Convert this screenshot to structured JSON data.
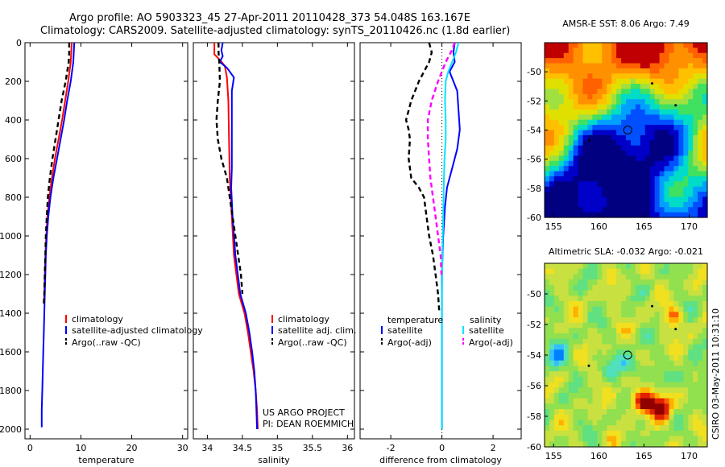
{
  "header": {
    "line1": "Argo profile: AO 5903323_45 27-Apr-2011 20110428_373 54.048S 163.167E",
    "line2": "Climatology: CARS2009. Satellite-adjusted climatology: synTS_20110426.nc (1.8d earlier)"
  },
  "colors": {
    "climatology": "#ff0000",
    "satellite": "#0000ff",
    "argo": "#000000",
    "cyan": "#00e5ff",
    "magenta": "#ff00ff"
  },
  "chart_data": [
    {
      "type": "line",
      "xlabel": "temperature",
      "ylabel": "",
      "xlim": [
        -1,
        31
      ],
      "ylim": [
        2050,
        0
      ],
      "xticks": [
        "0",
        "10",
        "20",
        "30"
      ],
      "yticks": [
        "0",
        "200",
        "400",
        "600",
        "800",
        "1000",
        "1200",
        "1400",
        "1600",
        "1800",
        "2000"
      ],
      "legend": [
        "climatology",
        "satellite-adjusted climatology",
        "Argo(..raw -QC)"
      ],
      "series": [
        {
          "name": "climatology",
          "style": "solid",
          "points": [
            [
              8.2,
              0
            ],
            [
              8.1,
              50
            ],
            [
              8,
              100
            ],
            [
              7.5,
              200
            ],
            [
              6.9,
              300
            ],
            [
              6.3,
              400
            ],
            [
              5.6,
              500
            ],
            [
              4.9,
              600
            ],
            [
              4.3,
              700
            ],
            [
              3.8,
              800
            ],
            [
              3.4,
              900
            ],
            [
              3.2,
              1000
            ],
            [
              3,
              1100
            ],
            [
              2.9,
              1200
            ],
            [
              2.8,
              1300
            ],
            [
              2.7,
              1350
            ]
          ]
        },
        {
          "name": "satellite-adjusted climatology",
          "style": "solid",
          "points": [
            [
              8.7,
              0
            ],
            [
              8.6,
              50
            ],
            [
              8.5,
              100
            ],
            [
              8,
              200
            ],
            [
              7.3,
              300
            ],
            [
              6.7,
              400
            ],
            [
              6,
              500
            ],
            [
              5.3,
              600
            ],
            [
              4.6,
              700
            ],
            [
              4,
              800
            ],
            [
              3.6,
              900
            ],
            [
              3.3,
              1000
            ],
            [
              3.1,
              1100
            ],
            [
              3,
              1200
            ],
            [
              2.9,
              1300
            ],
            [
              2.8,
              1400
            ],
            [
              2.7,
              1500
            ],
            [
              2.6,
              1600
            ],
            [
              2.5,
              1700
            ],
            [
              2.4,
              1800
            ],
            [
              2.3,
              1900
            ],
            [
              2.3,
              1990
            ]
          ]
        },
        {
          "name": "Argo(..raw -QC)",
          "style": "dash",
          "points": [
            [
              7.7,
              0
            ],
            [
              7.7,
              50
            ],
            [
              7.6,
              100
            ],
            [
              7,
              200
            ],
            [
              6.2,
              300
            ],
            [
              5.6,
              400
            ],
            [
              5,
              500
            ],
            [
              4.4,
              600
            ],
            [
              3.9,
              700
            ],
            [
              3.5,
              800
            ],
            [
              3.3,
              900
            ],
            [
              3.1,
              1000
            ],
            [
              3,
              1100
            ],
            [
              2.9,
              1200
            ],
            [
              2.8,
              1300
            ],
            [
              2.7,
              1350
            ]
          ]
        }
      ]
    },
    {
      "type": "line",
      "xlabel": "salinity",
      "ylabel": "",
      "xlim": [
        33.8,
        36.1
      ],
      "ylim": [
        2050,
        0
      ],
      "xticks": [
        "34",
        "34.5",
        "35",
        "35.5",
        "36"
      ],
      "legend": [
        "climatology",
        "satellite adj. clim.",
        "Argo(..raw -QC)"
      ],
      "series": [
        {
          "name": "climatology",
          "style": "solid",
          "points": [
            [
              34.1,
              0
            ],
            [
              34.1,
              60
            ],
            [
              34.18,
              90
            ],
            [
              34.25,
              120
            ],
            [
              34.28,
              180
            ],
            [
              34.3,
              300
            ],
            [
              34.31,
              500
            ],
            [
              34.32,
              700
            ],
            [
              34.35,
              900
            ],
            [
              34.38,
              1100
            ],
            [
              34.45,
              1300
            ],
            [
              34.53,
              1400
            ],
            [
              34.58,
              1500
            ],
            [
              34.62,
              1600
            ],
            [
              34.66,
              1700
            ],
            [
              34.69,
              1800
            ],
            [
              34.71,
              1900
            ],
            [
              34.72,
              2000
            ]
          ]
        },
        {
          "name": "satellite adj. clim.",
          "style": "solid",
          "points": [
            [
              34.22,
              0
            ],
            [
              34.2,
              40
            ],
            [
              34.22,
              70
            ],
            [
              34.18,
              100
            ],
            [
              34.28,
              130
            ],
            [
              34.38,
              180
            ],
            [
              34.35,
              250
            ],
            [
              34.35,
              400
            ],
            [
              34.35,
              500
            ],
            [
              34.35,
              650
            ],
            [
              34.34,
              750
            ],
            [
              34.36,
              900
            ],
            [
              34.4,
              1100
            ],
            [
              34.47,
              1300
            ],
            [
              34.55,
              1400
            ],
            [
              34.6,
              1500
            ],
            [
              34.64,
              1600
            ],
            [
              34.67,
              1700
            ],
            [
              34.69,
              1800
            ],
            [
              34.7,
              1900
            ],
            [
              34.71,
              2000
            ]
          ]
        },
        {
          "name": "Argo(..raw -QC)",
          "style": "dash",
          "points": [
            [
              34.16,
              0
            ],
            [
              34.16,
              50
            ],
            [
              34.17,
              100
            ],
            [
              34.18,
              200
            ],
            [
              34.15,
              300
            ],
            [
              34.13,
              400
            ],
            [
              34.15,
              500
            ],
            [
              34.2,
              600
            ],
            [
              34.28,
              700
            ],
            [
              34.32,
              800
            ],
            [
              34.36,
              900
            ],
            [
              34.42,
              1050
            ],
            [
              34.48,
              1200
            ],
            [
              34.5,
              1300
            ]
          ]
        }
      ]
    },
    {
      "type": "line",
      "xlabel": "difference from climatology",
      "ylabel": "",
      "xlim": [
        -3.2,
        3.1
      ],
      "ylim": [
        2050,
        0
      ],
      "xticks": [
        "-2",
        "0",
        "2"
      ],
      "legend": [
        "temperature",
        "satellite",
        "Argo(-adj)",
        "salinity",
        "satellite",
        "Argo(-adj)"
      ],
      "series": [
        {
          "name": "satellite",
          "style": "solid",
          "color": "#0000ff",
          "points": [
            [
              0.5,
              0
            ],
            [
              0.45,
              50
            ],
            [
              0.5,
              100
            ],
            [
              0.3,
              150
            ],
            [
              0.6,
              250
            ],
            [
              0.65,
              350
            ],
            [
              0.7,
              450
            ],
            [
              0.6,
              550
            ],
            [
              0.4,
              650
            ],
            [
              0.2,
              750
            ],
            [
              0.12,
              850
            ],
            [
              0.05,
              1000
            ],
            [
              0,
              1200
            ],
            [
              0,
              1400
            ],
            [
              0,
              1600
            ],
            [
              0,
              1800
            ],
            [
              0,
              2000
            ]
          ]
        },
        {
          "name": "Argo(-adj)",
          "style": "dash",
          "color": "#000000",
          "points": [
            [
              -0.5,
              0
            ],
            [
              -0.4,
              50
            ],
            [
              -0.5,
              100
            ],
            [
              -0.9,
              200
            ],
            [
              -1.2,
              300
            ],
            [
              -1.4,
              400
            ],
            [
              -1.3,
              450
            ],
            [
              -1.25,
              500
            ],
            [
              -1.3,
              600
            ],
            [
              -1.2,
              700
            ],
            [
              -0.9,
              750
            ],
            [
              -0.7,
              800
            ],
            [
              -0.6,
              900
            ],
            [
              -0.5,
              1000
            ],
            [
              -0.35,
              1100
            ],
            [
              -0.25,
              1200
            ],
            [
              -0.15,
              1300
            ],
            [
              -0.1,
              1400
            ]
          ]
        },
        {
          "name": "satellite",
          "style": "solid",
          "color": "#00e5ff",
          "points": [
            [
              0.65,
              0
            ],
            [
              0.55,
              50
            ],
            [
              0.4,
              100
            ],
            [
              0.25,
              150
            ],
            [
              0.15,
              200
            ],
            [
              0.12,
              300
            ],
            [
              0.15,
              400
            ],
            [
              0.15,
              500
            ],
            [
              0.1,
              600
            ],
            [
              0.08,
              700
            ],
            [
              0.05,
              900
            ],
            [
              0.02,
              1100
            ],
            [
              0,
              1300
            ],
            [
              0,
              1500
            ],
            [
              0,
              1700
            ],
            [
              0,
              1900
            ],
            [
              0,
              2000
            ]
          ]
        },
        {
          "name": "Argo(-adj)",
          "style": "dash",
          "color": "#ff00ff",
          "points": [
            [
              0.5,
              0
            ],
            [
              0.35,
              50
            ],
            [
              0.15,
              100
            ],
            [
              -0.15,
              200
            ],
            [
              -0.4,
              300
            ],
            [
              -0.55,
              400
            ],
            [
              -0.55,
              500
            ],
            [
              -0.5,
              600
            ],
            [
              -0.45,
              700
            ],
            [
              -0.35,
              800
            ],
            [
              -0.25,
              900
            ],
            [
              -0.15,
              1000
            ],
            [
              -0.05,
              1100
            ],
            [
              -0.02,
              1200
            ]
          ]
        }
      ]
    },
    {
      "type": "heatmap",
      "title": "AMSR-E SST: 8.06 Argo: 7.49",
      "xlim": [
        154,
        172
      ],
      "ylim": [
        -60,
        -48
      ],
      "xticks": [
        "155",
        "160",
        "165",
        "170"
      ],
      "yticks": [
        "-50",
        "-52",
        "-54",
        "-56",
        "-58",
        "-60"
      ],
      "marker": [
        163.2,
        -54
      ]
    },
    {
      "type": "heatmap",
      "title": "Altimetric SLA: -0.032 Argo: -0.021",
      "xlim": [
        154,
        172
      ],
      "ylim": [
        -60,
        -48
      ],
      "xticks": [
        "155",
        "160",
        "165",
        "170"
      ],
      "yticks": [
        "-50",
        "-52",
        "-54",
        "-56",
        "-58",
        "-60"
      ],
      "marker": [
        163.2,
        -54
      ]
    }
  ],
  "credits": {
    "project": "US ARGO PROJECT",
    "pi": "PI: DEAN ROEMMICH",
    "stamp": "CSIRO 03-May-2011 10:31:10"
  }
}
